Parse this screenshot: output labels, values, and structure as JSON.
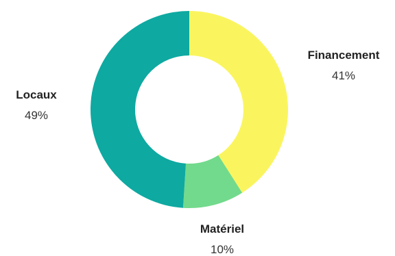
{
  "chart_data": {
    "type": "pie",
    "donut": true,
    "slices": [
      {
        "label": "Financement",
        "value": 41,
        "value_label": "41%",
        "color": "#FAF55E"
      },
      {
        "label": "Matériel",
        "value": 10,
        "value_label": "10%",
        "color": "#72DA8C"
      },
      {
        "label": "Locaux",
        "value": 49,
        "value_label": "49%",
        "color": "#0EA9A1"
      }
    ],
    "start": "top",
    "direction": "clockwise",
    "legend": "none"
  }
}
